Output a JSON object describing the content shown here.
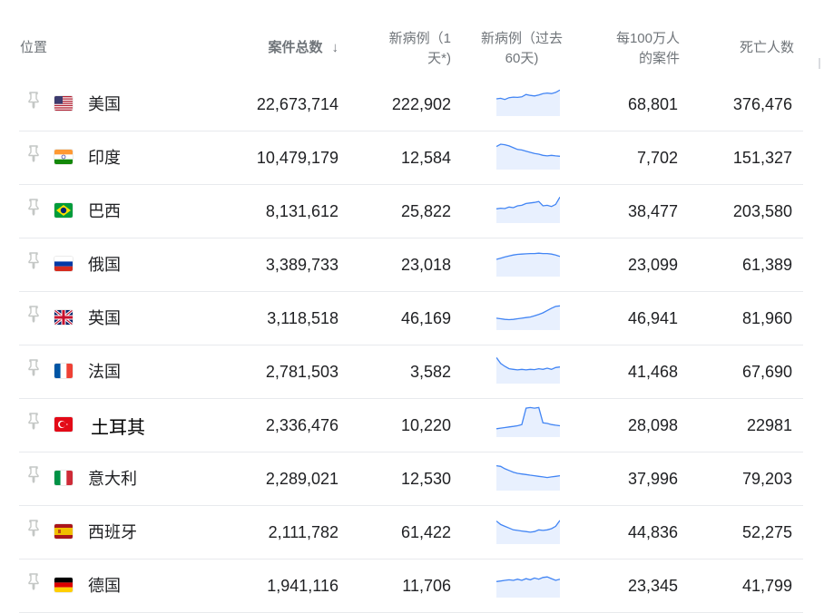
{
  "header": {
    "location": "位置",
    "total_cases": "案件总数",
    "sort_arrow": "↓",
    "new_cases_1": "新病例（1",
    "new_cases_2": "天*)",
    "new_60_1": "新病例（过去",
    "new_60_2": "60天)",
    "per_million_1": "每100万人",
    "per_million_2": "的案件",
    "deaths": "死亡人数"
  },
  "colors": {
    "spark_line": "#4285f4",
    "spark_fill": "#e8f0fe",
    "divider": "#e8eaed",
    "header_text": "#70757a"
  },
  "rows": [
    {
      "country": "美国",
      "flag": "us-flag",
      "total": "22,673,714",
      "new": "222,902",
      "per_million": "68,801",
      "deaths": "376,476",
      "trend": [
        40,
        42,
        38,
        44,
        46,
        45,
        47,
        55,
        52,
        50,
        53,
        58,
        60,
        58,
        62,
        70
      ]
    },
    {
      "country": "印度",
      "flag": "india-flag",
      "total": "10,479,179",
      "new": "12,584",
      "per_million": "7,702",
      "deaths": "151,327",
      "trend": [
        60,
        68,
        66,
        62,
        56,
        50,
        48,
        44,
        40,
        36,
        34,
        30,
        28,
        30,
        28,
        27
      ]
    },
    {
      "country": "巴西",
      "flag": "brazil-flag",
      "total": "8,131,612",
      "new": "25,822",
      "per_million": "38,477",
      "deaths": "203,580",
      "trend": [
        30,
        32,
        31,
        36,
        34,
        40,
        42,
        48,
        50,
        52,
        55,
        40,
        42,
        38,
        45,
        70
      ]
    },
    {
      "country": "俄国",
      "flag": "russia-flag",
      "total": "3,389,733",
      "new": "23,018",
      "per_million": "23,099",
      "deaths": "61,389",
      "trend": [
        40,
        44,
        48,
        52,
        55,
        57,
        58,
        59,
        60,
        60,
        61,
        60,
        60,
        58,
        55,
        50
      ]
    },
    {
      "country": "英国",
      "flag": "uk-flag",
      "total": "3,118,518",
      "new": "46,169",
      "per_million": "46,941",
      "deaths": "81,960",
      "trend": [
        22,
        20,
        18,
        17,
        18,
        20,
        22,
        24,
        26,
        30,
        35,
        40,
        48,
        56,
        62,
        64
      ]
    },
    {
      "country": "法国",
      "flag": "france-flag",
      "total": "2,781,503",
      "new": "3,582",
      "per_million": "41,468",
      "deaths": "67,690",
      "trend": [
        70,
        50,
        40,
        32,
        30,
        28,
        30,
        28,
        30,
        29,
        32,
        30,
        34,
        30,
        36,
        38
      ]
    },
    {
      "country": "土耳其",
      "flag": "turkey-flag",
      "total": "2,336,476",
      "new": "10,220",
      "per_million": "28,098",
      "deaths": "22981",
      "trend": [
        10,
        12,
        14,
        16,
        18,
        20,
        24,
        80,
        82,
        80,
        82,
        30,
        28,
        24,
        22,
        20
      ]
    },
    {
      "country": "意大利",
      "flag": "italy-flag",
      "total": "2,289,021",
      "new": "12,530",
      "per_million": "37,996",
      "deaths": "79,203",
      "trend": [
        66,
        64,
        56,
        50,
        44,
        40,
        38,
        36,
        34,
        32,
        30,
        28,
        26,
        28,
        30,
        32
      ]
    },
    {
      "country": "西班牙",
      "flag": "spain-flag",
      "total": "2,111,782",
      "new": "61,422",
      "per_million": "44,836",
      "deaths": "52,275",
      "trend": [
        60,
        48,
        42,
        36,
        30,
        28,
        26,
        24,
        22,
        24,
        30,
        28,
        30,
        34,
        42,
        62
      ]
    },
    {
      "country": "德国",
      "flag": "germany-flag",
      "total": "1,941,116",
      "new": "11,706",
      "per_million": "23,345",
      "deaths": "41,799",
      "trend": [
        36,
        38,
        40,
        42,
        40,
        44,
        40,
        46,
        42,
        48,
        44,
        50,
        52,
        46,
        40,
        44
      ]
    }
  ]
}
